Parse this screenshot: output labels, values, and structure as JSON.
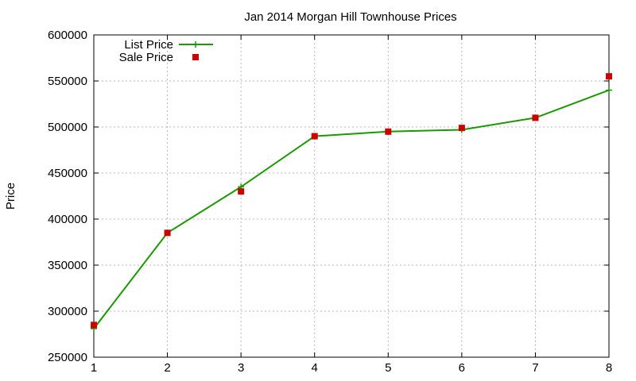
{
  "chart_data": {
    "type": "line",
    "title": "Jan 2014 Morgan Hill Townhouse Prices",
    "xlabel": "",
    "ylabel": "Price",
    "x": [
      1,
      2,
      3,
      4,
      5,
      6,
      7,
      8
    ],
    "xlim": [
      1,
      8
    ],
    "ylim": [
      250000,
      600000
    ],
    "x_ticks": [
      "1",
      "2",
      "3",
      "4",
      "5",
      "6",
      "7",
      "8"
    ],
    "y_ticks": [
      "250000",
      "300000",
      "350000",
      "400000",
      "450000",
      "500000",
      "550000",
      "600000"
    ],
    "grid": true,
    "legend_position": "top-left",
    "series": [
      {
        "name": "List Price",
        "style": "line-plus",
        "color": "#1a9a00",
        "values": [
          281000,
          385000,
          435000,
          490000,
          495000,
          497000,
          510000,
          540000
        ]
      },
      {
        "name": "Sale Price",
        "style": "square-points",
        "color": "#cc0000",
        "values": [
          285000,
          385000,
          430000,
          490000,
          495000,
          499000,
          510000,
          555000
        ]
      }
    ]
  }
}
